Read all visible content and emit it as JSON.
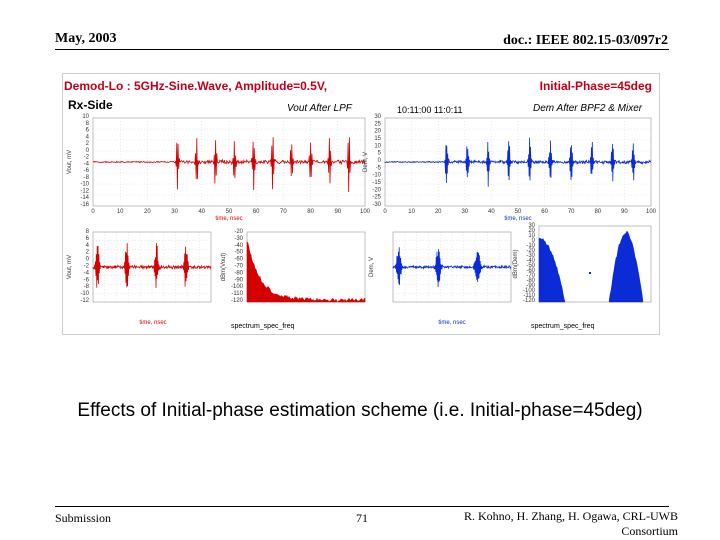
{
  "header": {
    "date": "May, 2003",
    "doc_id": "doc.: IEEE 802.15-03/097r2"
  },
  "figure": {
    "title_left": "Demod-Lo : 5GHz-Sine.Wave, Amplitude=0.5V,",
    "title_right": "Initial-Phase=45deg",
    "side_label": "Rx-Side",
    "label_vout": "Vout After LPF",
    "label_dem": "Dem After BPF2 & Mixer",
    "timestamp": "10:11:00  11:0:11",
    "xlabel": "time, nsec",
    "bottom_left": "spectrum_spec_freq",
    "bottom_right": "spectrum_spec_freq",
    "colors": {
      "red": "#d40000",
      "blue": "#0a2bd6"
    },
    "panels": {
      "top_left": {
        "ylabel": "Vout, mV",
        "yticks": [
          "10",
          "8",
          "6",
          "4",
          "2",
          "0",
          "-2",
          "-4",
          "-6",
          "-8",
          "-10",
          "-12",
          "-14",
          "-16"
        ],
        "xticks": [
          "0",
          "10",
          "20",
          "30",
          "40",
          "50",
          "60",
          "70",
          "80",
          "90",
          "100"
        ]
      },
      "top_right": {
        "ylabel": "Dem, V",
        "yticks": [
          "30",
          "25",
          "20",
          "15",
          "10",
          "5",
          "0",
          "-5",
          "-10",
          "-15",
          "-20",
          "-25",
          "-30"
        ],
        "xticks": [
          "0",
          "10",
          "20",
          "30",
          "40",
          "50",
          "60",
          "70",
          "80",
          "90",
          "100"
        ]
      },
      "mid_left": {
        "ylabel": "Vout, mV",
        "yticks": [
          "8",
          "6",
          "4",
          "2",
          "0",
          "-2",
          "-4",
          "-6",
          "-8",
          "-10",
          "-12"
        ]
      },
      "spec_red": {
        "ylabel": "dBm(Vout)",
        "yticks": [
          "-20",
          "-30",
          "-40",
          "-50",
          "-60",
          "-70",
          "-80",
          "-90",
          "-100",
          "-110",
          "-120"
        ]
      },
      "mid_blue": {
        "ylabel": "Dem, V"
      },
      "spec_blue": {
        "ylabel": "dBm(Dem)",
        "yticks": [
          "30",
          "20",
          "10",
          "0",
          "-10",
          "-20",
          "-30",
          "-40",
          "-50",
          "-60",
          "-70",
          "-80",
          "-90",
          "-100",
          "-110",
          "-120"
        ]
      }
    }
  },
  "caption": "Effects of Initial-phase estimation scheme (i.e. Initial-phase=45deg)",
  "footer": {
    "left": "Submission",
    "page": "71",
    "authors_line1": "R. Kohno, H. Zhang, H. Ogawa, CRL-UWB",
    "authors_line2": "Consortium"
  }
}
